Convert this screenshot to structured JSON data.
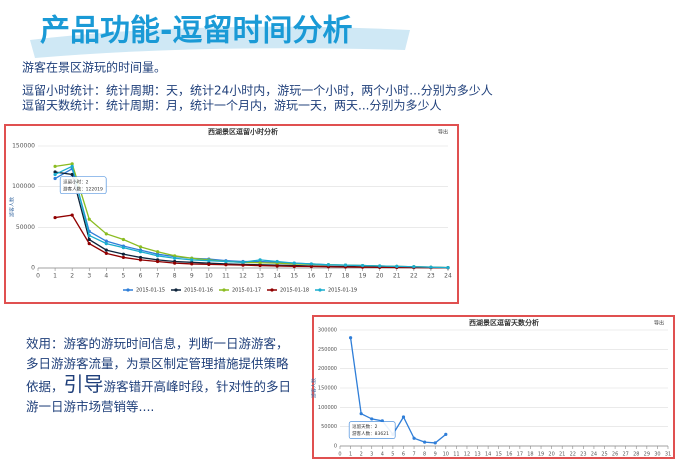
{
  "header": {
    "title": "产品功能-逗留时间分析"
  },
  "intro": [
    "游客在景区游玩的时间量。",
    "逗留小时统计：统计周期：天，统计24小时内，游玩一个小时，两个小时...分别为多少人",
    "逗留天数统计：统计周期：月，统计一个月内，游玩一天，两天...分别为多少人"
  ],
  "effect": {
    "before": "效用：游客的游玩时间信息，判断一日游游客，多日游游客流量，为景区制定管理措施提供策略依据，",
    "emphasis": "引导",
    "after": "游客错开高峰时段，针对性的多日游一日游市场营销等...."
  },
  "chart_data": [
    {
      "type": "line",
      "title": "西湖景区逗留小时分析",
      "export": "导出",
      "ylabel": "游客人数",
      "x": [
        1,
        2,
        3,
        4,
        5,
        6,
        7,
        8,
        9,
        10,
        11,
        12,
        13,
        14,
        15,
        16,
        17,
        18,
        19,
        20,
        21,
        22,
        23,
        24
      ],
      "xlim": [
        0,
        24
      ],
      "xticks": [
        0,
        1,
        2,
        3,
        4,
        5,
        6,
        7,
        8,
        9,
        10,
        11,
        12,
        13,
        14,
        15,
        16,
        17,
        18,
        19,
        20,
        21,
        22,
        23,
        24
      ],
      "ylim": [
        0,
        150000
      ],
      "yticks": [
        0,
        50000,
        100000,
        150000
      ],
      "grid": true,
      "legend": "bottom",
      "tooltip": [
        "逗留小时：2",
        "游客人数：122019"
      ],
      "series": [
        {
          "name": "2015-01-15",
          "color": "#2f7ed8",
          "values": [
            110000,
            122019,
            45000,
            33000,
            27000,
            22000,
            17000,
            14000,
            12000,
            11000,
            9000,
            8000,
            8000,
            7000,
            6000,
            5000,
            4000,
            3500,
            3000,
            2500,
            2000,
            1500,
            1000,
            500
          ]
        },
        {
          "name": "2015-01-16",
          "color": "#0d233a",
          "values": [
            118000,
            115000,
            35000,
            22000,
            17000,
            13000,
            10000,
            8000,
            7000,
            6000,
            5000,
            4500,
            4000,
            3500,
            3000,
            2500,
            2000,
            1800,
            1500,
            1200,
            1000,
            800,
            600,
            400
          ]
        },
        {
          "name": "2015-01-17",
          "color": "#8bbc21",
          "values": [
            125000,
            128000,
            60000,
            42000,
            35000,
            26000,
            20000,
            15000,
            12000,
            10000,
            8000,
            7000,
            6500,
            6000,
            5000,
            4500,
            4000,
            3500,
            3000,
            2500,
            2000,
            1500,
            1000,
            500
          ]
        },
        {
          "name": "2015-01-18",
          "color": "#910000",
          "values": [
            62000,
            65000,
            30000,
            18000,
            13000,
            10000,
            8000,
            6000,
            5000,
            4500,
            4000,
            3500,
            3000,
            2500,
            2000,
            1800,
            1500,
            1200,
            1000,
            800,
            600,
            500,
            400,
            300
          ]
        },
        {
          "name": "2015-01-19",
          "color": "#1aadce",
          "values": [
            115000,
            125000,
            40000,
            30000,
            25000,
            20000,
            15000,
            12000,
            10000,
            9000,
            8000,
            7000,
            10000,
            8000,
            6000,
            5000,
            4000,
            3500,
            3000,
            2500,
            2000,
            1500,
            1000,
            500
          ]
        }
      ]
    },
    {
      "type": "line",
      "title": "西湖景区逗留天数分析",
      "export": "导出",
      "ylabel": "游客人数",
      "x": [
        1,
        2,
        3,
        4,
        5,
        6,
        7,
        8,
        9,
        10
      ],
      "xlim": [
        0,
        31
      ],
      "xticks": [
        0,
        1,
        2,
        3,
        4,
        5,
        6,
        7,
        8,
        9,
        10,
        11,
        12,
        13,
        14,
        15,
        16,
        17,
        18,
        19,
        20,
        21,
        22,
        23,
        24,
        25,
        26,
        27,
        28,
        29,
        30,
        31
      ],
      "ylim": [
        0,
        300000
      ],
      "yticks": [
        0,
        50000,
        100000,
        150000,
        200000,
        250000,
        300000
      ],
      "grid": true,
      "tooltip": [
        "逗留天数：2",
        "游客人数：83621"
      ],
      "series": [
        {
          "name": "逗留天数",
          "color": "#2f7ed8",
          "values": [
            280000,
            83621,
            70000,
            65000,
            30000,
            75000,
            20000,
            10000,
            8000,
            30000
          ]
        }
      ]
    }
  ]
}
